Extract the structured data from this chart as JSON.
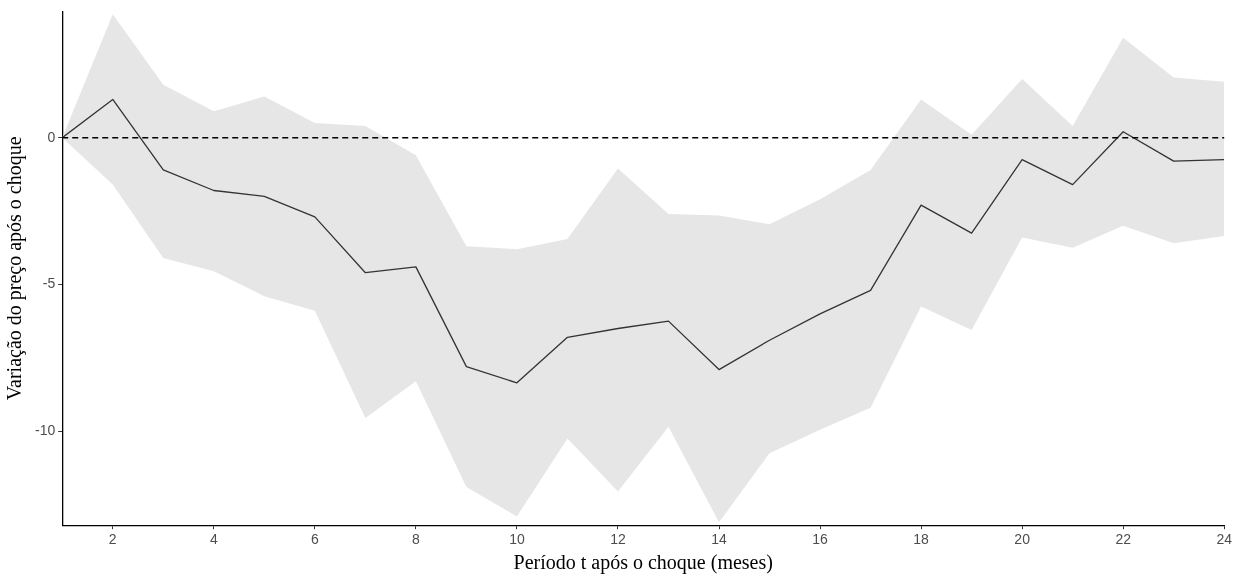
{
  "chart_data": {
    "type": "line",
    "xlabel": "Período t após o choque (meses)",
    "ylabel": "Variação do preço após o choque",
    "x": [
      1,
      2,
      3,
      4,
      5,
      6,
      7,
      8,
      9,
      10,
      11,
      12,
      13,
      14,
      15,
      16,
      17,
      18,
      19,
      20,
      21,
      22,
      23,
      24
    ],
    "series": [
      {
        "color": "#333333",
        "values": [
          0,
          1.3,
          -1.1,
          -1.8,
          -2.0,
          -2.7,
          -4.6,
          -4.4,
          -7.8,
          -8.35,
          -6.8,
          -6.5,
          -6.25,
          -7.9,
          -6.9,
          -6.0,
          -5.2,
          -2.3,
          -3.25,
          -0.75,
          -1.6,
          0.2,
          -0.8,
          -0.75
        ],
        "lower": [
          0,
          -1.6,
          -4.1,
          -4.55,
          -5.4,
          -5.9,
          -9.55,
          -8.3,
          -11.9,
          -12.9,
          -10.25,
          -12.05,
          -9.85,
          -13.1,
          -10.75,
          -9.95,
          -9.2,
          -5.75,
          -6.55,
          -3.4,
          -3.75,
          -3.0,
          -3.6,
          -3.35
        ],
        "upper": [
          0,
          4.2,
          1.8,
          0.9,
          1.4,
          0.5,
          0.4,
          -0.6,
          -3.7,
          -3.8,
          -3.45,
          -1.05,
          -2.6,
          -2.65,
          -2.95,
          -2.1,
          -1.1,
          1.3,
          0.1,
          2.0,
          0.4,
          3.4,
          2.05,
          1.9
        ]
      }
    ],
    "xlim": [
      1,
      24
    ],
    "xticks": [
      2,
      4,
      6,
      8,
      10,
      12,
      14,
      16,
      18,
      20,
      22,
      24
    ],
    "ylim": [
      -13.2,
      4.3
    ],
    "yticks": [
      -10,
      -5,
      0
    ],
    "ref_lines": [
      {
        "axis": "y",
        "value": 0,
        "line_style": "dashed",
        "color": "#000000"
      }
    ],
    "grid": false,
    "legend": false,
    "marker": "none",
    "line_style": "solid"
  }
}
